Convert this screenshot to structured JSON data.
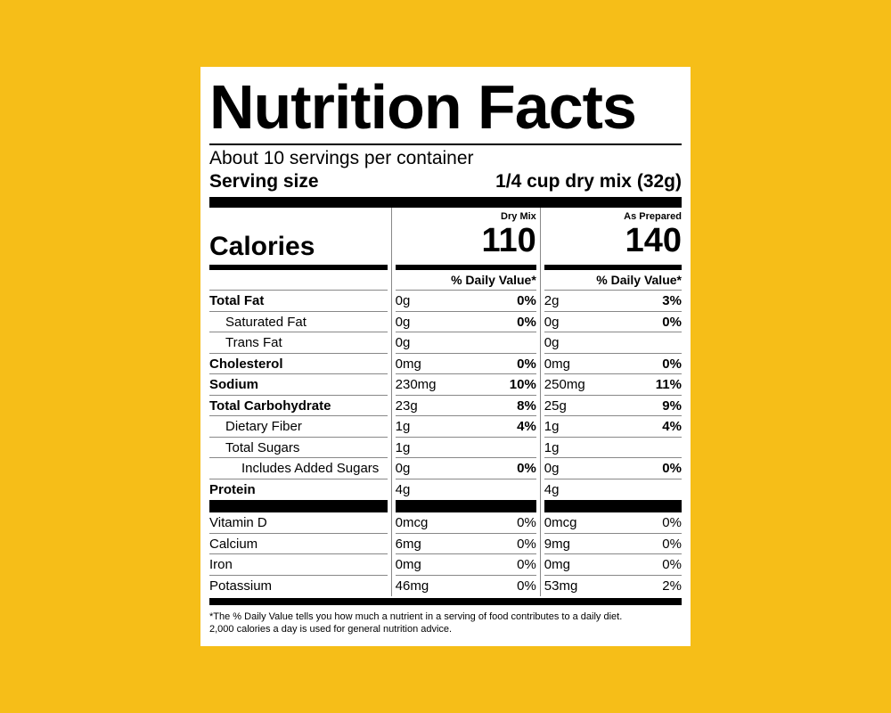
{
  "title": "Nutrition Facts",
  "servings_per_container": "About 10 servings per container",
  "serving_size_label": "Serving size",
  "serving_size_value": "1/4 cup dry mix (32g)",
  "calories_label": "Calories",
  "dry": {
    "header": "Dry Mix",
    "calories": "110",
    "dv_header": "% Daily Value*"
  },
  "prep": {
    "header": "As Prepared",
    "calories": "140",
    "dv_header": "% Daily Value*"
  },
  "nutrients": [
    {
      "name": "Total Fat",
      "bold": true,
      "indent": 0,
      "dry_amt": "0g",
      "dry_dv": "0%",
      "prep_amt": "2g",
      "prep_dv": "3%"
    },
    {
      "name": "Saturated Fat",
      "bold": false,
      "indent": 1,
      "dry_amt": "0g",
      "dry_dv": "0%",
      "prep_amt": "0g",
      "prep_dv": "0%"
    },
    {
      "name": "Trans Fat",
      "bold": false,
      "indent": 1,
      "dry_amt": "0g",
      "dry_dv": "",
      "prep_amt": "0g",
      "prep_dv": ""
    },
    {
      "name": "Cholesterol",
      "bold": true,
      "indent": 0,
      "dry_amt": "0mg",
      "dry_dv": "0%",
      "prep_amt": "0mg",
      "prep_dv": "0%"
    },
    {
      "name": "Sodium",
      "bold": true,
      "indent": 0,
      "dry_amt": "230mg",
      "dry_dv": "10%",
      "prep_amt": "250mg",
      "prep_dv": "11%"
    },
    {
      "name": "Total Carbohydrate",
      "bold": true,
      "indent": 0,
      "dry_amt": "23g",
      "dry_dv": "8%",
      "prep_amt": "25g",
      "prep_dv": "9%"
    },
    {
      "name": "Dietary Fiber",
      "bold": false,
      "indent": 1,
      "dry_amt": "1g",
      "dry_dv": "4%",
      "prep_amt": "1g",
      "prep_dv": "4%"
    },
    {
      "name": "Total Sugars",
      "bold": false,
      "indent": 1,
      "dry_amt": "1g",
      "dry_dv": "",
      "prep_amt": "1g",
      "prep_dv": ""
    },
    {
      "name": "Includes Added Sugars",
      "bold": false,
      "indent": 2,
      "dry_amt": "0g",
      "dry_dv": "0%",
      "prep_amt": "0g",
      "prep_dv": "0%"
    },
    {
      "name": "Protein",
      "bold": true,
      "indent": 0,
      "dry_amt": "4g",
      "dry_dv": "",
      "prep_amt": "4g",
      "prep_dv": ""
    }
  ],
  "micros": [
    {
      "name": "Vitamin D",
      "dry_amt": "0mcg",
      "dry_dv": "0%",
      "prep_amt": "0mcg",
      "prep_dv": "0%"
    },
    {
      "name": "Calcium",
      "dry_amt": "6mg",
      "dry_dv": "0%",
      "prep_amt": "9mg",
      "prep_dv": "0%"
    },
    {
      "name": "Iron",
      "dry_amt": "0mg",
      "dry_dv": "0%",
      "prep_amt": "0mg",
      "prep_dv": "0%"
    },
    {
      "name": "Potassium",
      "dry_amt": "46mg",
      "dry_dv": "0%",
      "prep_amt": "53mg",
      "prep_dv": "2%"
    }
  ],
  "footnote_line1": "*The % Daily Value tells you how much a nutrient in a serving of food contributes to a daily diet.",
  "footnote_line2": "2,000 calories a day is used for general nutrition advice."
}
